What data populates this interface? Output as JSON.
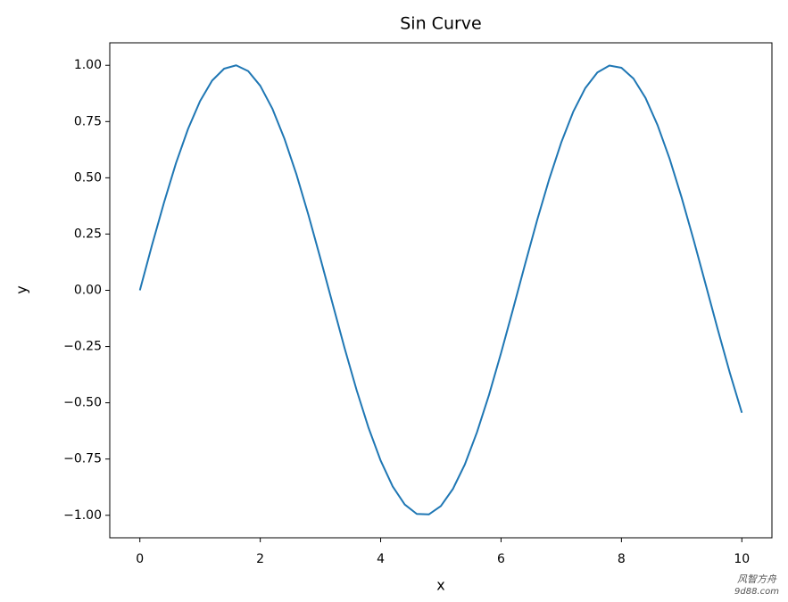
{
  "chart_data": {
    "type": "line",
    "title": "Sin Curve",
    "x_label": "x",
    "y_label": "y",
    "x": [
      0,
      0.2,
      0.4,
      0.6,
      0.8,
      1.0,
      1.2,
      1.4,
      1.6,
      1.8,
      2.0,
      2.2,
      2.4,
      2.6,
      2.8,
      3.0,
      3.2,
      3.4,
      3.6,
      3.8,
      4.0,
      4.2,
      4.4,
      4.6,
      4.8,
      5.0,
      5.2,
      5.4,
      5.6,
      5.8,
      6.0,
      6.2,
      6.4,
      6.6,
      6.8,
      7.0,
      7.2,
      7.4,
      7.6,
      7.8,
      8.0,
      8.2,
      8.4,
      8.6,
      8.8,
      9.0,
      9.2,
      9.4,
      9.6,
      9.8,
      10.0
    ],
    "values": [
      0,
      0.199,
      0.389,
      0.565,
      0.717,
      0.841,
      0.932,
      0.985,
      1.0,
      0.974,
      0.909,
      0.808,
      0.675,
      0.516,
      0.335,
      0.141,
      -0.058,
      -0.256,
      -0.443,
      -0.612,
      -0.757,
      -0.872,
      -0.952,
      -0.994,
      -0.996,
      -0.959,
      -0.883,
      -0.773,
      -0.631,
      -0.465,
      -0.279,
      -0.083,
      0.117,
      0.312,
      0.494,
      0.657,
      0.794,
      0.899,
      0.968,
      0.999,
      0.989,
      0.941,
      0.855,
      0.734,
      0.585,
      0.412,
      0.223,
      0.025,
      -0.174,
      -0.366,
      -0.544
    ],
    "color": "#1f77b4",
    "xlim": [
      -0.5,
      10.5
    ],
    "xticks": [
      0,
      2,
      4,
      6,
      8,
      10
    ],
    "ylim": [
      -1.1,
      1.1
    ],
    "yticks": [
      {
        "value": -1,
        "label": "−1.00"
      },
      {
        "value": -0.75,
        "label": "−0.75"
      },
      {
        "value": -0.5,
        "label": "−0.50"
      },
      {
        "value": -0.25,
        "label": "−0.25"
      },
      {
        "value": 0,
        "label": "0.00"
      },
      {
        "value": 0.25,
        "label": "0.25"
      },
      {
        "value": 0.5,
        "label": "0.50"
      },
      {
        "value": 0.75,
        "label": "0.75"
      },
      {
        "value": 1,
        "label": "1.00"
      }
    ],
    "grid": false,
    "watermark": [
      "风智方舟",
      "9d88.com"
    ]
  }
}
